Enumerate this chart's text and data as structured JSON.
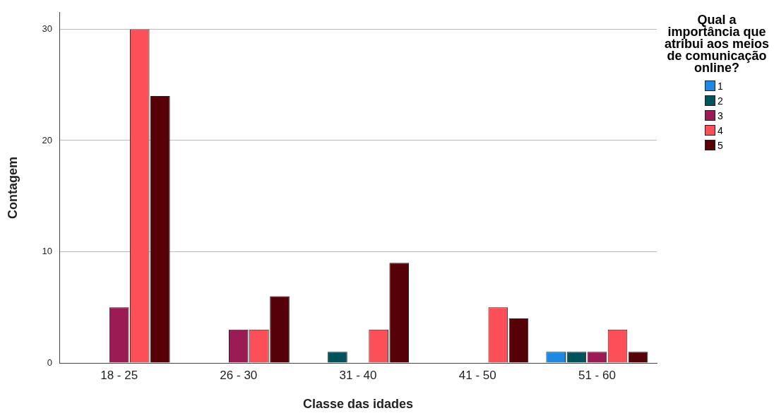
{
  "chart_data": {
    "type": "bar",
    "xlabel": "Classe das idades",
    "ylabel": "Contagem",
    "legend_title": "Qual a importância que atribui aos meios de comunicação online?",
    "categories": [
      "18 - 25",
      "26 - 30",
      "31 - 40",
      "41 - 50",
      "51 - 60"
    ],
    "series": [
      {
        "name": "1",
        "color": "#1e88e5",
        "values": [
          null,
          null,
          null,
          null,
          1
        ]
      },
      {
        "name": "2",
        "color": "#00535a",
        "values": [
          null,
          null,
          1,
          null,
          1
        ]
      },
      {
        "name": "3",
        "color": "#9b1b55",
        "values": [
          5,
          3,
          null,
          null,
          1
        ]
      },
      {
        "name": "4",
        "color": "#fd4f57",
        "values": [
          30,
          3,
          3,
          5,
          3
        ]
      },
      {
        "name": "5",
        "color": "#560008",
        "values": [
          24,
          6,
          9,
          4,
          1
        ]
      }
    ],
    "ylim": [
      0,
      31.5
    ],
    "yticks": [
      0,
      10,
      20,
      30
    ],
    "grid": "y",
    "legend": "top right"
  }
}
